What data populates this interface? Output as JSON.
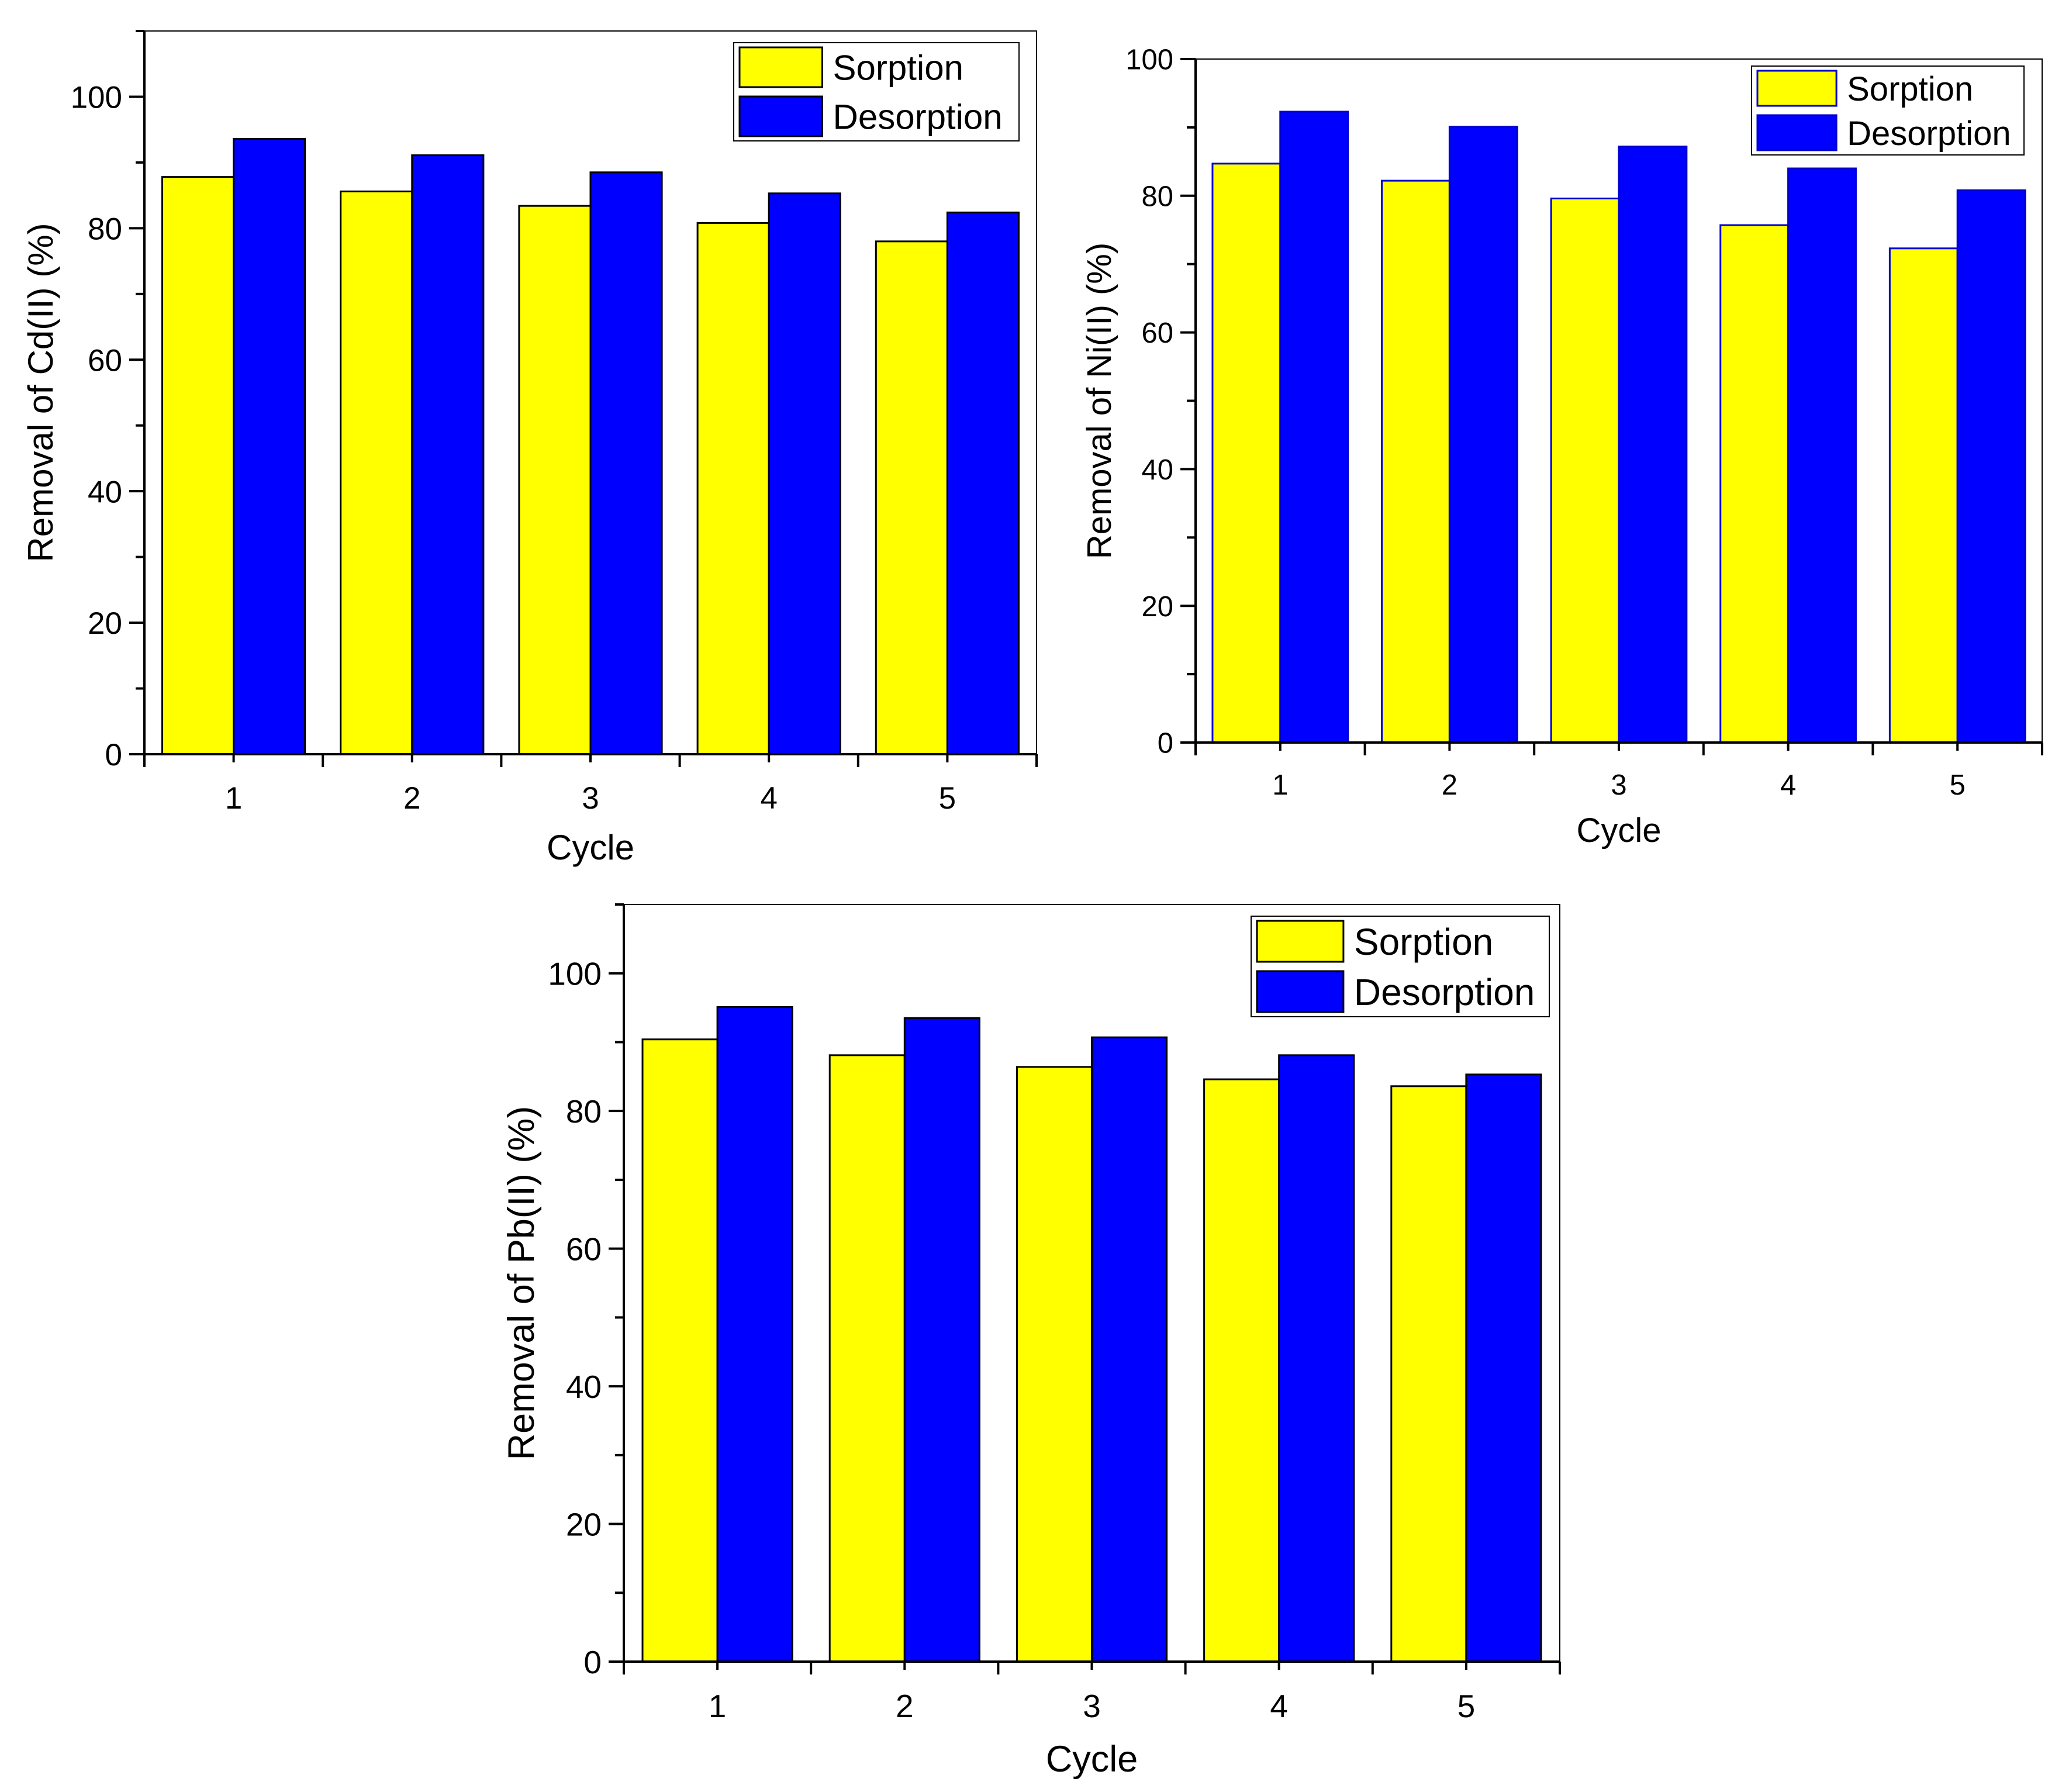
{
  "chart_data": [
    {
      "type": "bar",
      "title": "",
      "xlabel": "Cycle",
      "ylabel": "Removal of Cd(II) (%)",
      "ylim": [
        0,
        110
      ],
      "yticks": [
        0,
        20,
        40,
        60,
        80,
        100
      ],
      "categories": [
        "1",
        "2",
        "3",
        "4",
        "5"
      ],
      "legend_position": "top-right",
      "series": [
        {
          "name": "Sorption",
          "color": "#ffff00",
          "values": [
            87.8,
            85.6,
            83.4,
            80.8,
            78.0
          ]
        },
        {
          "name": "Desorption",
          "color": "#0000ff",
          "values": [
            93.6,
            91.1,
            88.5,
            85.3,
            82.4
          ]
        }
      ]
    },
    {
      "type": "bar",
      "title": "",
      "xlabel": "Cycle",
      "ylabel": "Removal of Ni(II) (%)",
      "ylim": [
        0,
        100
      ],
      "yticks": [
        0,
        20,
        40,
        60,
        80,
        100
      ],
      "categories": [
        "1",
        "2",
        "3",
        "4",
        "5"
      ],
      "legend_position": "top-right",
      "series": [
        {
          "name": "Sorption",
          "color": "#ffff00",
          "values": [
            84.7,
            82.2,
            79.6,
            75.7,
            72.3
          ]
        },
        {
          "name": "Desorption",
          "color": "#0000ff",
          "values": [
            92.3,
            90.1,
            87.2,
            84.0,
            80.8
          ]
        }
      ]
    },
    {
      "type": "bar",
      "title": "",
      "xlabel": "Cycle",
      "ylabel": "Removal of Pb(II) (%)",
      "ylim": [
        0,
        110
      ],
      "yticks": [
        0,
        20,
        40,
        60,
        80,
        100
      ],
      "categories": [
        "1",
        "2",
        "3",
        "4",
        "5"
      ],
      "legend_position": "top-right",
      "series": [
        {
          "name": "Sorption",
          "color": "#ffff00",
          "values": [
            90.4,
            88.1,
            86.4,
            84.6,
            83.6
          ]
        },
        {
          "name": "Desorption",
          "color": "#0000ff",
          "values": [
            95.1,
            93.5,
            90.7,
            88.1,
            85.3
          ]
        }
      ]
    }
  ]
}
